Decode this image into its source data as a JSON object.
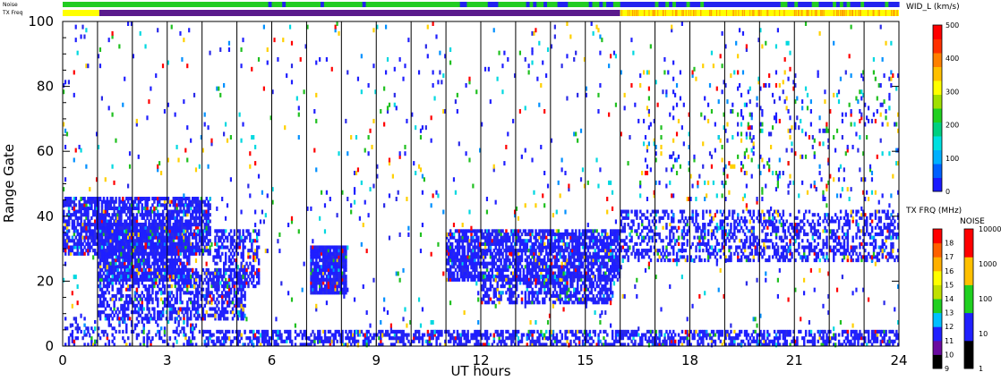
{
  "chart_data": {
    "type": "heatmap",
    "xlabel": "UT hours",
    "ylabel": "Range Gate",
    "xlim": [
      0,
      24
    ],
    "ylim": [
      0,
      100
    ],
    "x_ticks": [
      "0",
      "3",
      "6",
      "9",
      "12",
      "15",
      "18",
      "21",
      "24"
    ],
    "y_ticks": [
      "0",
      "20",
      "40",
      "60",
      "80",
      "100"
    ],
    "hour_lines": [
      1,
      2,
      3,
      4,
      5,
      6,
      7,
      8,
      9,
      10,
      11,
      12,
      13,
      14,
      15,
      16,
      17,
      18,
      19,
      20,
      21,
      22,
      23
    ],
    "top_strips": {
      "noise_label": "Noise",
      "txfreq_label": "TX Freq",
      "noise_colors": [
        "#22cc22",
        "#2222ee"
      ],
      "txfreq_segments": [
        {
          "start": 0,
          "end": 1.05,
          "color": "#ffff00"
        },
        {
          "start": 1.05,
          "end": 16.0,
          "color": "#5a1a8c"
        },
        {
          "start": 16.0,
          "end": 24,
          "color": "#ffff00"
        }
      ]
    },
    "colorbars": [
      {
        "title": "WID_L (km/s)",
        "ticks": [
          "0",
          "100",
          "200",
          "300",
          "400",
          "500"
        ],
        "range": [
          0,
          500
        ],
        "colors": [
          "#1a1aff",
          "#0060ff",
          "#00b0ff",
          "#00e0e0",
          "#00d080",
          "#20d020",
          "#a0e000",
          "#ffff00",
          "#ffc000",
          "#ff8000",
          "#ff3000",
          "#ff0000"
        ]
      },
      {
        "title": "TX FRQ (MHz)",
        "ticks": [
          "9",
          "10",
          "11",
          "12",
          "13",
          "14",
          "15",
          "16",
          "17",
          "18"
        ],
        "colors": [
          "#000000",
          "#6a0aa0",
          "#2020ff",
          "#00c0ff",
          "#20d020",
          "#c0e000",
          "#ffff00",
          "#ffb000",
          "#ff6000",
          "#ff0000"
        ]
      },
      {
        "title": "NOISE",
        "ticks": [
          "1",
          "10",
          "100",
          "1000",
          "10000"
        ],
        "colors": [
          "#000000",
          "#2020ff",
          "#20d020",
          "#ffc000",
          "#ff0000"
        ]
      }
    ],
    "echo_regions": [
      {
        "name": "near-range band",
        "t0": 4.0,
        "t1": 24,
        "g0": 0,
        "g1": 5,
        "density": 0.55
      },
      {
        "name": "near-range sparse",
        "t0": 0,
        "t1": 4.0,
        "g0": 0,
        "g1": 9,
        "density": 0.22
      },
      {
        "name": "early high band",
        "t0": 0,
        "t1": 4.2,
        "g0": 28,
        "g1": 46,
        "density": 0.75
      },
      {
        "name": "early mid band",
        "t0": 1.0,
        "t1": 3.6,
        "g0": 20,
        "g1": 38,
        "density": 0.8
      },
      {
        "name": "early lower band",
        "t0": 1.0,
        "t1": 5.2,
        "g0": 8,
        "g1": 24,
        "density": 0.55
      },
      {
        "name": "early spread band",
        "t0": 4.3,
        "t1": 5.6,
        "g0": 18,
        "g1": 36,
        "density": 0.45
      },
      {
        "name": "07-08 UT patch",
        "t0": 7.1,
        "t1": 8.1,
        "g0": 16,
        "g1": 31,
        "density": 0.95
      },
      {
        "name": "11-16 UT band",
        "t0": 11.0,
        "t1": 16.0,
        "g0": 20,
        "g1": 36,
        "density": 0.75
      },
      {
        "name": "11-16 UT lower band",
        "t0": 12.0,
        "t1": 15.8,
        "g0": 13,
        "g1": 22,
        "density": 0.55
      },
      {
        "name": "late band",
        "t0": 16.0,
        "t1": 24,
        "g0": 26,
        "g1": 42,
        "density": 0.4
      },
      {
        "name": "late scatter",
        "t0": 16.5,
        "t1": 24,
        "g0": 45,
        "g1": 85,
        "density": 0.05
      },
      {
        "name": "background scatter",
        "t0": 0,
        "t1": 24,
        "g0": 0,
        "g1": 100,
        "density": 0.02
      }
    ]
  }
}
